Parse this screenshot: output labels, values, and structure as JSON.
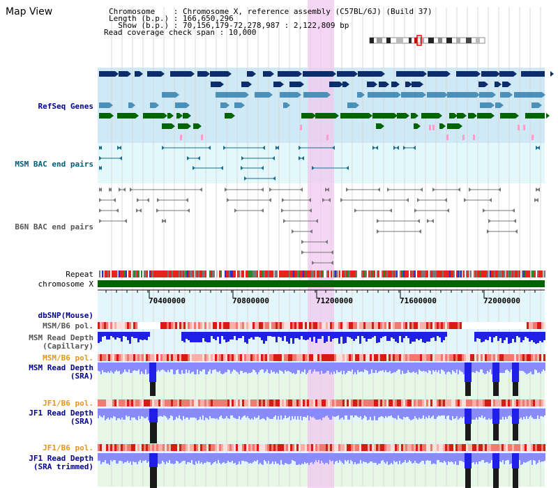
{
  "header": {
    "title": "Map View",
    "lines": [
      "Chromosome    : Chromosome X, reference assembly (C57BL/6J) (Build 37)",
      "Length (b.p.) : 166,650,296",
      "  Show (b.p.) : 70,156,179-72,278,987 : 2,122,809 bp",
      "Read coverage check span : 10,000"
    ]
  },
  "tracks": {
    "refseq": "RefSeq Genes",
    "msm_bac": "MSM BAC end pairs",
    "b6n_bac": "B6N BAC end pairs",
    "repeat": "Repeat",
    "chromosome": "chromosome X",
    "dbsnp": "dbSNP(Mouse)",
    "msm_pol_1": "MSM/B6 pol.",
    "msm_depth_cap_1": "MSM Read Depth",
    "msm_depth_cap_2": "(Capillary)",
    "msm_pol_2": "MSM/B6 pol.",
    "msm_depth_sra_1": "MSM Read Depth",
    "msm_depth_sra_2": "(SRA)",
    "jf1_pol_1": "JF1/B6 pol.",
    "jf1_depth_sra_1": "JF1 Read Depth",
    "jf1_depth_sra_2": "(SRA)",
    "jf1_pol_2": "JF1/B6 pol.",
    "jf1_depth_trim_1": "JF1 Read Depth",
    "jf1_depth_trim_2": "(SRA trimmed)"
  },
  "ruler": {
    "ticks": [
      "70400000",
      "70800000",
      "71200000",
      "71600000",
      "72000000"
    ]
  },
  "colors": {
    "gene_dark": "#0b2d6b",
    "gene_mid": "#4a90b8",
    "gene_green": "#006400",
    "gene_pink": "#ff9ec8",
    "refseq_bg": "#cfe9f7",
    "bac_bg": "#e2f8fa",
    "highlight": "#f2c8f0",
    "chromosome": "#006400",
    "depth_blue": "#1f1fe6",
    "depth_light": "#8a8aff",
    "pol_red": "#e8231b"
  }
}
